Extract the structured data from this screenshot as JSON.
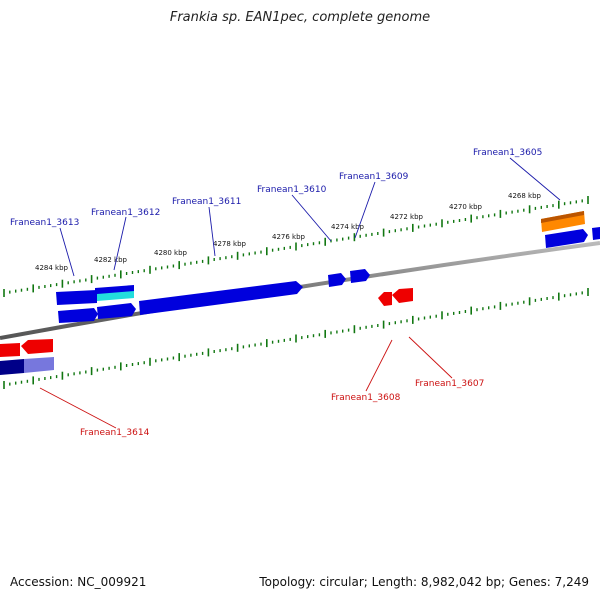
{
  "header": {
    "title": "Frankia sp. EAN1pec, complete genome"
  },
  "footer": {
    "accession": "Accession: NC_009921",
    "topology": "Topology: circular; Length: 8,982,042 bp; Genes: 7,249"
  },
  "colors": {
    "forward_strand": "#0000dd",
    "reverse_strand": "#ee0000",
    "forward_label": "#1a1aaa",
    "reverse_label": "#cc1111",
    "cyan_gene": "#22dddd",
    "orange_gene": "#ff8800",
    "navy_gene": "#000088",
    "lavender_gene": "#7777dd",
    "tick": "#117711",
    "backbone": "#888888"
  },
  "kbp_labels": [
    "4284 kbp",
    "4282 kbp",
    "4280 kbp",
    "4278 kbp",
    "4276 kbp",
    "4274 kbp",
    "4272 kbp",
    "4270 kbp",
    "4268 kbp"
  ],
  "gene_labels_forward": [
    "Franean1_3613",
    "Franean1_3612",
    "Franean1_3611",
    "Franean1_3610",
    "Franean1_3609",
    "Franean1_3605"
  ],
  "gene_labels_reverse": [
    "Franean1_3608",
    "Franean1_3607",
    "Franean1_3614"
  ]
}
